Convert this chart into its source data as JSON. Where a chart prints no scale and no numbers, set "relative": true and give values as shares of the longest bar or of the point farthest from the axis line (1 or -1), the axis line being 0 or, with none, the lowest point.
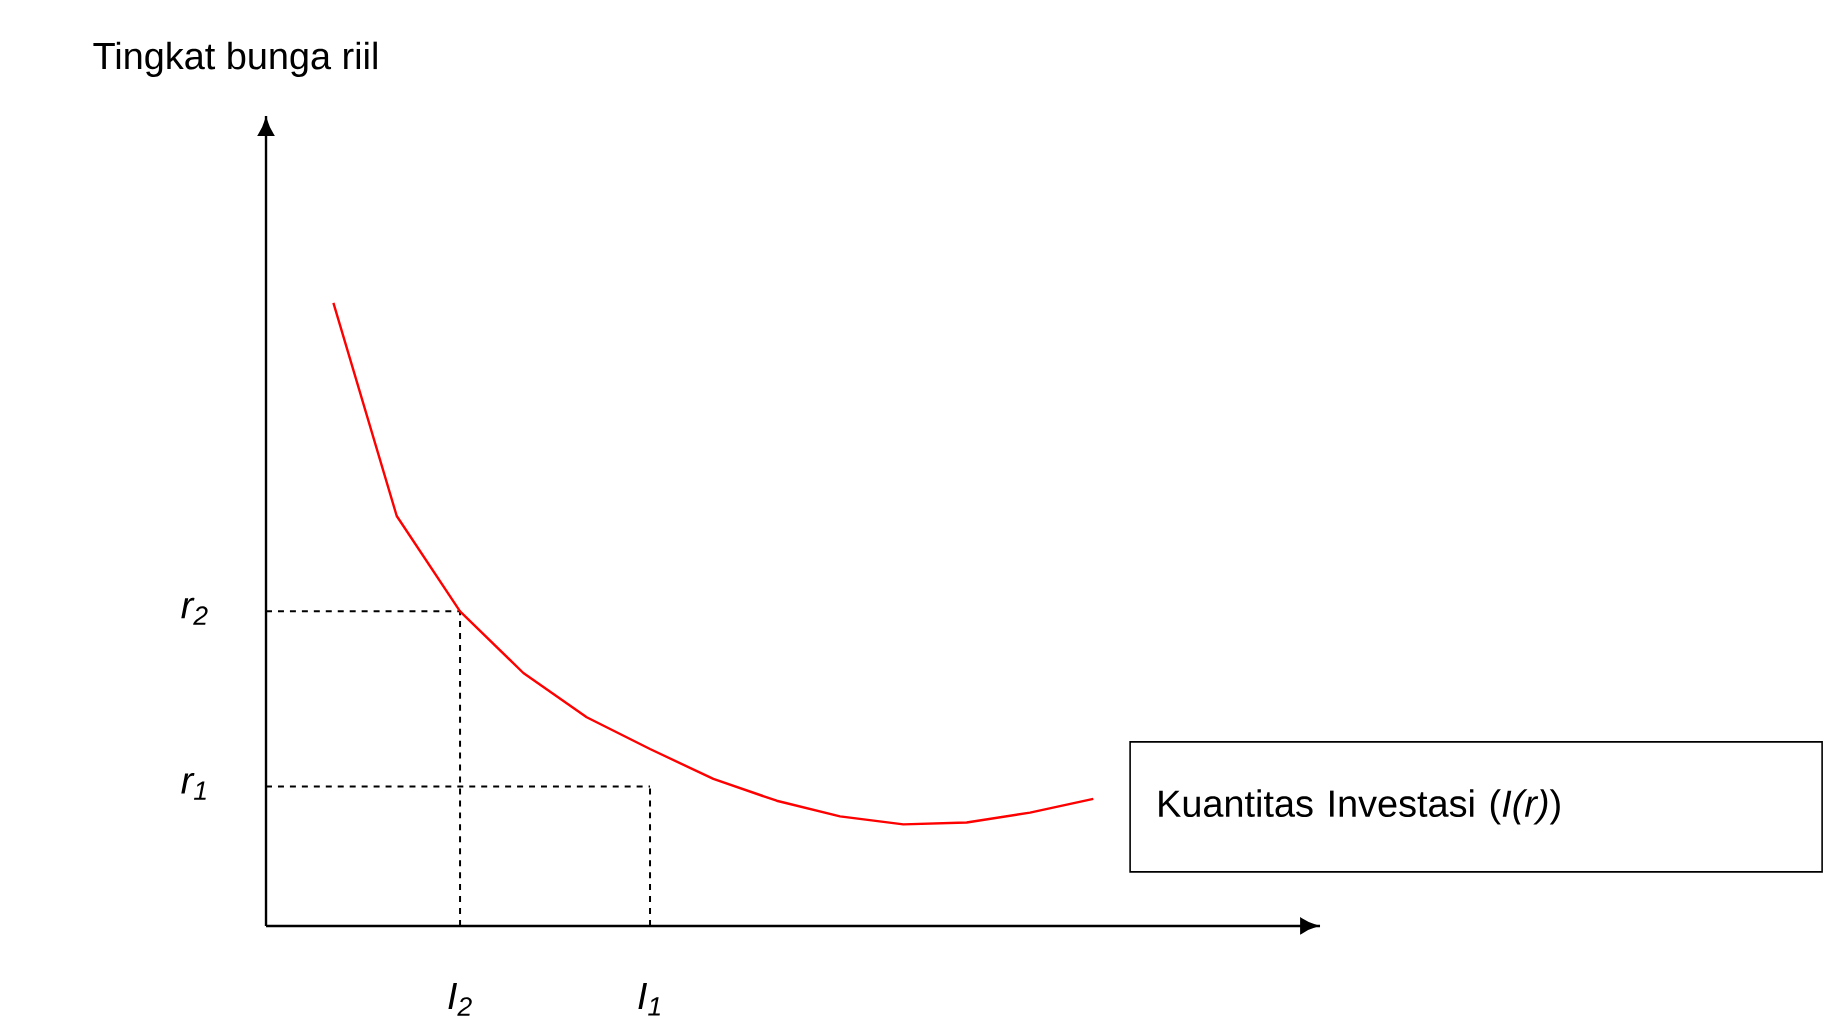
{
  "chart_data": {
    "type": "line",
    "relative": true,
    "categories": [
      null,
      null,
      "*I$_{2}$*",
      null,
      null,
      "*I$_{1}$*",
      null,
      null,
      null,
      null,
      null,
      null,
      null
    ],
    "marker": "none",
    "annotations": [
      "Tingkat bunga riil",
      "Kuantitas Investasi (*I(r)*)"
    ],
    "ref_lines": [
      {
        "axis": "y",
        "value": 0.505,
        "label": "*r$_{2}$*",
        "color": "#000000",
        "line_style": "dashed"
      },
      {
        "axis": "y",
        "value": 0.224,
        "label": "*r$_{1}$*",
        "color": "#000000",
        "line_style": "dashed"
      },
      {
        "axis": "x",
        "value": "*I$_{2}$*",
        "color": "#000000",
        "line_style": "dashed"
      },
      {
        "axis": "x",
        "value": "*I$_{1}$*",
        "color": "#000000",
        "line_style": "dashed"
      }
    ],
    "series": [
      {
        "color": "#ff0000",
        "line_style": "solid",
        "values": [
          1,
          0.658,
          0.505,
          0.406,
          0.335,
          0.284,
          0.236,
          0.201,
          0.176,
          0.163,
          0.166,
          0.182,
          0.204
        ]
      }
    ]
  }
}
